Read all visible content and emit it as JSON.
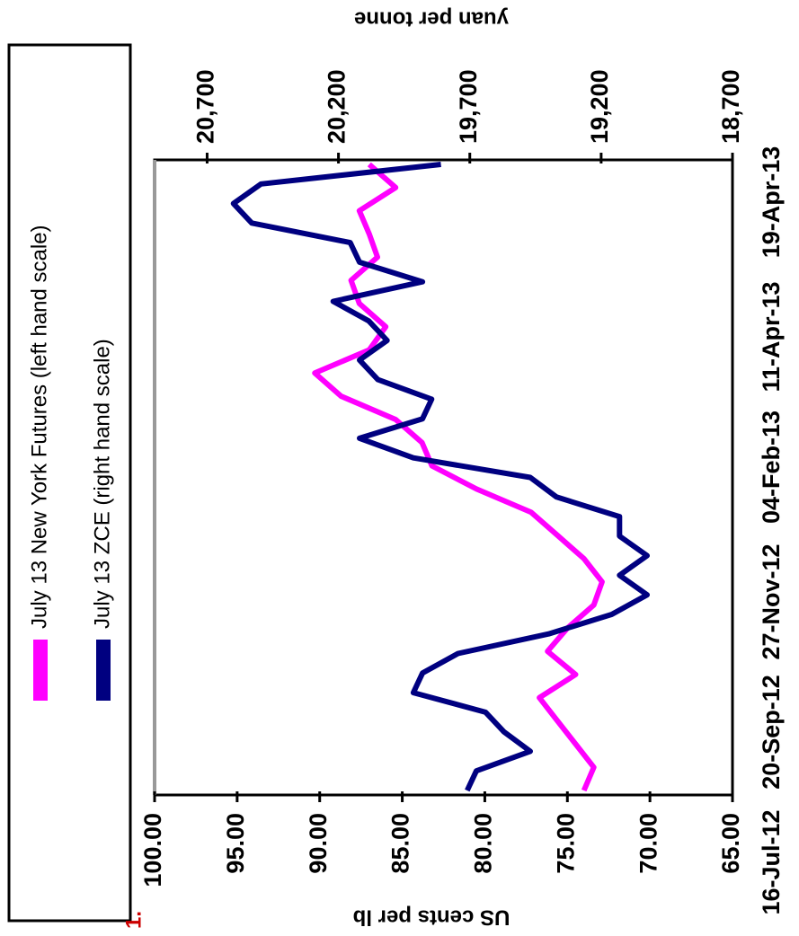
{
  "chart_data": {
    "type": "line",
    "ylabel": "US cents per lb",
    "y2label": "yuan per tonne",
    "note": "1.",
    "xticks": [
      "16-Jul-12",
      "20-Sep-12",
      "27-Nov-12",
      "04-Feb-13",
      "11-Apr-13",
      "19-Apr-13"
    ],
    "ylim": [
      65,
      100
    ],
    "yticks": [
      {
        "value": 100,
        "label": "100.00"
      },
      {
        "value": 95,
        "label": "95.00"
      },
      {
        "value": 90,
        "label": "90.00"
      },
      {
        "value": 85,
        "label": "85.00"
      },
      {
        "value": 80,
        "label": "80.00"
      },
      {
        "value": 75,
        "label": "75.00"
      },
      {
        "value": 70,
        "label": "70.00"
      },
      {
        "value": 65,
        "label": "65.00"
      }
    ],
    "y2lim": [
      18700,
      20900
    ],
    "y2ticks": [
      {
        "value": 20700,
        "label": "20,700"
      },
      {
        "value": 20200,
        "label": "20,200"
      },
      {
        "value": 19700,
        "label": "19,700"
      },
      {
        "value": 19200,
        "label": "19,200"
      },
      {
        "value": 18700,
        "label": "18,700"
      }
    ],
    "series": [
      {
        "name": "July 13 New York Futures (left hand scale)",
        "color": "#ff00ff",
        "values": [
          74,
          73.4,
          74.5,
          75.6,
          76.7,
          74.5,
          76.2,
          75,
          73.4,
          72.9,
          74,
          75.6,
          77.2,
          80.5,
          83.2,
          83.8,
          85.4,
          88.7,
          90.3,
          87,
          86,
          87.6,
          88.1,
          86.5,
          87,
          87.6,
          85.4,
          87
        ]
      },
      {
        "name": "July 13 ZCE (right hand scale)",
        "color": "#000080",
        "axis": "y2",
        "values": [
          19710,
          19675,
          19470,
          19570,
          19640,
          19915,
          19880,
          19745,
          19400,
          19160,
          19025,
          19130,
          19025,
          19130,
          19130,
          19370,
          19470,
          19915,
          20120,
          19880,
          19845,
          20050,
          20120,
          20015,
          20085,
          20220,
          19880,
          20120,
          20155,
          20530,
          20600,
          20495,
          19810
        ]
      }
    ]
  }
}
